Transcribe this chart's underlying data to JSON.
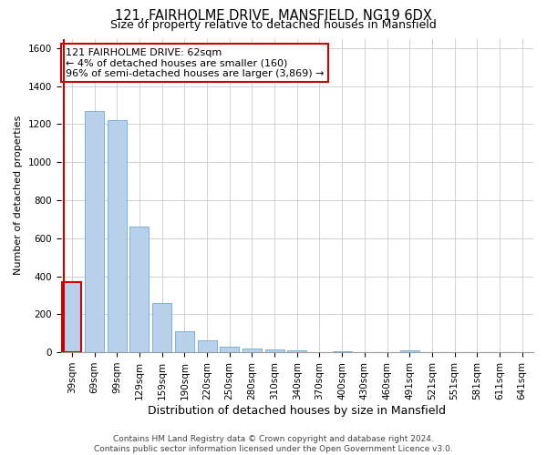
{
  "title_line1": "121, FAIRHOLME DRIVE, MANSFIELD, NG19 6DX",
  "title_line2": "Size of property relative to detached houses in Mansfield",
  "xlabel": "Distribution of detached houses by size in Mansfield",
  "ylabel": "Number of detached properties",
  "footer_line1": "Contains HM Land Registry data © Crown copyright and database right 2024.",
  "footer_line2": "Contains public sector information licensed under the Open Government Licence v3.0.",
  "annotation_line1": "121 FAIRHOLME DRIVE: 62sqm",
  "annotation_line2": "← 4% of detached houses are smaller (160)",
  "annotation_line3": "96% of semi-detached houses are larger (3,869) →",
  "categories": [
    "39sqm",
    "69sqm",
    "99sqm",
    "129sqm",
    "159sqm",
    "190sqm",
    "220sqm",
    "250sqm",
    "280sqm",
    "310sqm",
    "340sqm",
    "370sqm",
    "400sqm",
    "430sqm",
    "460sqm",
    "491sqm",
    "521sqm",
    "551sqm",
    "581sqm",
    "611sqm",
    "641sqm"
  ],
  "values": [
    370,
    1270,
    1220,
    660,
    260,
    110,
    65,
    30,
    20,
    15,
    10,
    0,
    5,
    0,
    0,
    10,
    0,
    0,
    0,
    0,
    0
  ],
  "bar_color": "#b8d0ea",
  "bar_edge_color": "#6aaad4",
  "highlight_color": "#cc0000",
  "highlight_bar_index": 0,
  "ylim": [
    0,
    1650
  ],
  "yticks": [
    0,
    200,
    400,
    600,
    800,
    1000,
    1200,
    1400,
    1600
  ],
  "grid_color": "#d0d0d0",
  "background_color": "#ffffff",
  "annotation_box_edge_color": "#cc0000",
  "annotation_box_face_color": "#ffffff",
  "title1_fontsize": 10.5,
  "title2_fontsize": 9,
  "ylabel_fontsize": 8,
  "xlabel_fontsize": 9,
  "tick_fontsize": 7.5,
  "footer_fontsize": 6.5,
  "annotation_fontsize": 8
}
